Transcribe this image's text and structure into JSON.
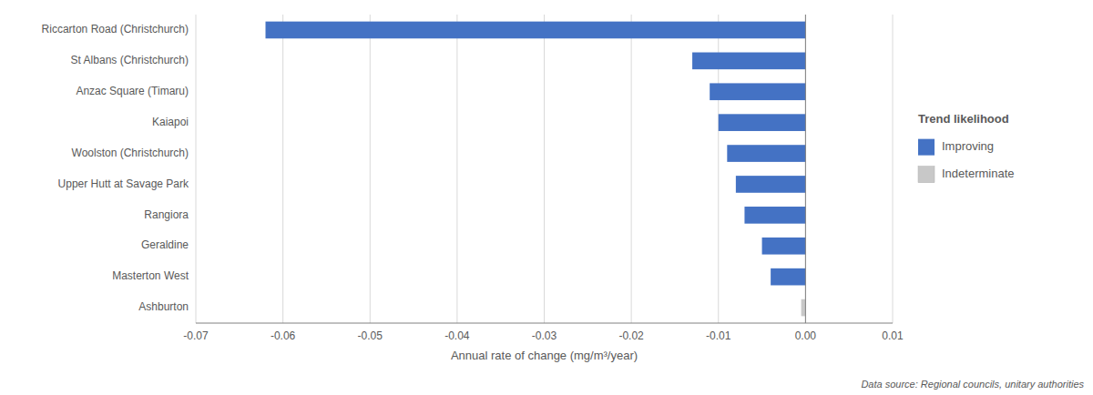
{
  "chart_data": {
    "type": "bar",
    "orientation": "horizontal",
    "categories": [
      "Riccarton Road (Christchurch)",
      "St Albans (Christchurch)",
      "Anzac Square (Timaru)",
      "Kaiapoi",
      "Woolston (Christchurch)",
      "Upper Hutt at Savage Park",
      "Rangiora",
      "Geraldine",
      "Masterton West",
      "Ashburton"
    ],
    "values": [
      -0.062,
      -0.013,
      -0.011,
      -0.01,
      -0.009,
      -0.008,
      -0.007,
      -0.005,
      -0.004,
      -0.0005
    ],
    "colors": [
      "#4472C4",
      "#4472C4",
      "#4472C4",
      "#4472C4",
      "#4472C4",
      "#4472C4",
      "#4472C4",
      "#4472C4",
      "#4472C4",
      "#C8C8C8"
    ],
    "xlim": [
      -0.07,
      0.01
    ],
    "xticks": [
      -0.07,
      -0.06,
      -0.05,
      -0.04,
      -0.03,
      -0.02,
      -0.01,
      {
        "value": 0,
        "label": "0.00"
      },
      0.01
    ],
    "xlabel": "Annual rate of change (mg/m³/year)",
    "grid": true,
    "legend": "right",
    "legend_title": "Trend likelihood",
    "legend_items": [
      {
        "label": "Improving",
        "color": "#4472C4"
      },
      {
        "label": "Indeterminate",
        "color": "#C8C8C8"
      }
    ],
    "annotations": [
      "Data source: Regional councils, unitary authorities"
    ]
  }
}
